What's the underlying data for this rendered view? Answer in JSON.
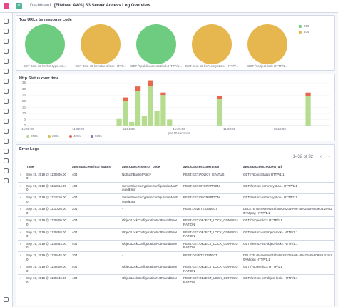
{
  "header": {
    "space": "D",
    "breadcrumb": "Dashboard",
    "title": "[Filebeat AWS] S3 Server Access Log Overview"
  },
  "chart_data": [
    {
      "type": "pie",
      "title": "Top URLs by response code",
      "series": [
        {
          "name": "200",
          "color": "#6dcc7f"
        },
        {
          "name": "404",
          "color": "#e5b74e"
        }
      ],
      "pies": [
        {
          "label": "GET /test-s3-ks?list-type=2&...",
          "color": "#6dcc7f",
          "value": 100
        },
        {
          "label": "GET /test-s3-ks?object-lock HTTP...",
          "color": "#e5b74e",
          "value": 100
        },
        {
          "label": "GET /?publicAccessBlock HTTP/1...",
          "color": "#6dcc7f",
          "value": 100
        },
        {
          "label": "GET /test-s3-ks?encryption= HTTP/...",
          "color": "#e5b74e",
          "value": 100
        },
        {
          "label": "GET /?object-lock HTTP/1...",
          "color": "#e5b74e",
          "value": 100
        }
      ]
    },
    {
      "type": "bar",
      "title": "Http Status over time",
      "xlabel": "per 10 seconds",
      "stacked": true,
      "grid": true,
      "xlim": [
        0,
        48
      ],
      "xticks": [
        {
          "value": 0,
          "label": "11:00:00"
        },
        {
          "value": 8,
          "label": "11:02:00"
        },
        {
          "value": 16,
          "label": "11:04:00"
        },
        {
          "value": 24,
          "label": "11:06:00"
        },
        {
          "value": 32,
          "label": "11:08:00"
        },
        {
          "value": 40,
          "label": "11:10:00"
        }
      ],
      "ylim": [
        0,
        35
      ],
      "yticks": [
        0,
        5,
        10,
        15,
        20,
        25,
        30,
        35
      ],
      "series": [
        {
          "name": "200s",
          "color": "#b5dc8f",
          "values": [
            0,
            0,
            0,
            0,
            0,
            0,
            0,
            0,
            0,
            0,
            0,
            0,
            0,
            0,
            6,
            20,
            3,
            28,
            8,
            32,
            12,
            25,
            5,
            0,
            0,
            0,
            0,
            0,
            0,
            0,
            22,
            0,
            0,
            0,
            0,
            0,
            0,
            0,
            0,
            0,
            0,
            0,
            0,
            0,
            24,
            0,
            0,
            0
          ]
        },
        {
          "name": "300s",
          "color": "#d6bf57",
          "values": [
            0,
            0,
            0,
            0,
            0,
            0,
            0,
            0,
            0,
            0,
            0,
            0,
            0,
            0,
            0,
            0,
            0,
            0,
            0,
            0,
            0,
            0,
            0,
            0,
            0,
            0,
            0,
            0,
            0,
            0,
            0,
            0,
            0,
            0,
            0,
            0,
            0,
            0,
            0,
            0,
            0,
            0,
            0,
            0,
            0,
            0,
            0,
            0
          ]
        },
        {
          "name": "400s",
          "color": "#e7664c",
          "values": [
            0,
            0,
            0,
            0,
            0,
            0,
            0,
            0,
            0,
            0,
            0,
            0,
            0,
            0,
            0,
            3,
            0,
            4,
            0,
            5,
            0,
            2,
            0,
            0,
            0,
            0,
            0,
            0,
            0,
            0,
            2,
            0,
            0,
            0,
            0,
            0,
            0,
            0,
            0,
            0,
            0,
            0,
            0,
            0,
            3,
            0,
            0,
            0
          ]
        },
        {
          "name": "500s",
          "color": "#9170b8",
          "values": [
            0,
            0,
            0,
            0,
            0,
            0,
            0,
            0,
            0,
            0,
            0,
            0,
            0,
            0,
            0,
            0,
            0,
            0,
            0,
            0,
            0,
            0,
            0,
            0,
            0,
            0,
            0,
            0,
            0,
            0,
            0,
            0,
            0,
            0,
            0,
            0,
            0,
            0,
            0,
            0,
            0,
            0,
            0,
            0,
            0,
            0,
            0,
            0
          ]
        }
      ]
    }
  ],
  "table": {
    "title": "Error Logs",
    "pagination": "1–32 of 32",
    "columns": [
      "Time",
      "aws.s3access.http_status",
      "aws.s3access.error_code",
      "aws.s3access.operation",
      "aws.s3access.request_uri"
    ],
    "rows": [
      [
        "Sep 19, 2019 @ 11:09:06.000",
        "404",
        "NoSuchBucketPolicy",
        "REST.GET.POLICY_STATUS",
        "GET /?policyStatus HTTP/1.1"
      ],
      [
        "Sep 19, 2019 @ 11:13:14.000",
        "404",
        "ServerSideEncryptionConfigurationNotFoundError",
        "REST.GET.ENCRYPTION",
        "GET /test-s3-ks?encryption= HTTP/1.1"
      ],
      [
        "Sep 19, 2019 @ 11:13:10.000",
        "404",
        "ServerSideEncryptionConfigurationNotFoundError",
        "REST.GET.ENCRYPTION",
        "GET /test-s3-ks?encryption= HTTP/1.1"
      ],
      [
        "Sep 19, 2019 @ 11:10:26.000",
        "204",
        "-",
        "REST.DELETE.OBJECT",
        "DELETE /Screen%20Shot%202019-09-18%20at%209.06.25%20AM.png HTTP/1.1"
      ],
      [
        "Sep 19, 2019 @ 11:09:00.000",
        "404",
        "ObjectLockConfigurationNotFoundError",
        "REST.GET.OBJECT_LOCK_CONFIGURATION",
        "GET /?object-lock HTTP/1.1"
      ],
      [
        "Sep 19, 2019 @ 11:08:58.000",
        "404",
        "ObjectLockConfigurationNotFoundError",
        "REST.GET.OBJECT_LOCK_CONFIGURATION",
        "GET /test-s3-ks?object-lock= HTTP/1.1"
      ],
      [
        "Sep 19, 2019 @ 11:08:53.000",
        "404",
        "ObjectLockConfigurationNotFoundError",
        "REST.GET.OBJECT_LOCK_CONFIGURATION",
        "GET /test-s3-ks?object-lock= HTTP/1.1"
      ],
      [
        "Sep 19, 2019 @ 11:08:45.000",
        "204",
        "-",
        "REST.DELETE.OBJECT",
        "DELETE /Screen%20Shot%202019-09-18%20at%209.55.41%20AM.png HTTP/1.1"
      ],
      [
        "Sep 19, 2019 @ 11:08:00.000",
        "404",
        "ObjectLockConfigurationNotFoundError",
        "REST.GET.OBJECT_LOCK_CONFIGURATION",
        "GET /?object-lock HTTP/1.1"
      ],
      [
        "Sep 19, 2019 @ 11:08:46.000",
        "404",
        "ObjectLockConfigurationNotFoundError",
        "REST.GET.OBJECT_LOCK_CONFIGURATION",
        "GET /test-s3-ks?object-lock= HTTP/1.1"
      ]
    ]
  }
}
